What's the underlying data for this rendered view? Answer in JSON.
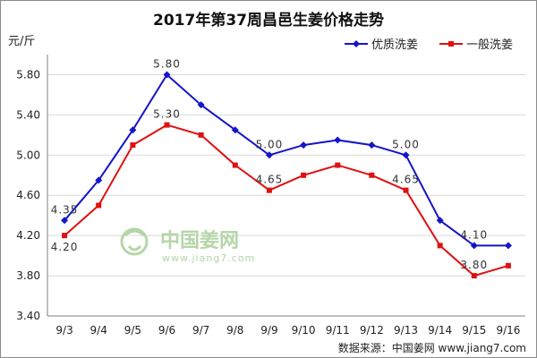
{
  "chart_data": {
    "type": "line",
    "title": "2017年第37周昌邑生姜价格走势",
    "ylabel": "元/斤",
    "xlabel": "",
    "categories": [
      "9/3",
      "9/4",
      "9/5",
      "9/6",
      "9/7",
      "9/8",
      "9/9",
      "9/10",
      "9/11",
      "9/12",
      "9/13",
      "9/14",
      "9/15",
      "9/16"
    ],
    "ylim": [
      3.4,
      6.0
    ],
    "yticks": [
      "3.40",
      "3.80",
      "4.20",
      "4.60",
      "5.00",
      "5.40",
      "5.80"
    ],
    "grid": true,
    "legend_position": "top-right",
    "series": [
      {
        "name": "优质洗姜",
        "color": "#1414c8",
        "marker": "diamond",
        "values": [
          4.35,
          4.75,
          5.25,
          5.8,
          5.5,
          5.25,
          5.0,
          5.1,
          5.15,
          5.1,
          5.0,
          4.35,
          4.1,
          4.1
        ]
      },
      {
        "name": "一般洗姜",
        "color": "#e01010",
        "marker": "square",
        "values": [
          4.2,
          4.5,
          5.1,
          5.3,
          5.2,
          4.9,
          4.65,
          4.8,
          4.9,
          4.8,
          4.65,
          4.1,
          3.8,
          3.9
        ]
      }
    ],
    "data_labels": [
      {
        "series": 0,
        "index": 0,
        "text": "4.35",
        "pos": "above"
      },
      {
        "series": 1,
        "index": 0,
        "text": "4.20",
        "pos": "below"
      },
      {
        "series": 0,
        "index": 3,
        "text": "5.80",
        "pos": "above"
      },
      {
        "series": 1,
        "index": 3,
        "text": "5.30",
        "pos": "above"
      },
      {
        "series": 0,
        "index": 6,
        "text": "5.00",
        "pos": "above"
      },
      {
        "series": 1,
        "index": 6,
        "text": "4.65",
        "pos": "above"
      },
      {
        "series": 0,
        "index": 10,
        "text": "5.00",
        "pos": "above"
      },
      {
        "series": 1,
        "index": 10,
        "text": "4.65",
        "pos": "above"
      },
      {
        "series": 0,
        "index": 12,
        "text": "4.10",
        "pos": "above"
      },
      {
        "series": 1,
        "index": 12,
        "text": "3.80",
        "pos": "above"
      }
    ]
  },
  "watermark": {
    "logo_text": "中国姜网",
    "url_text": "www.jiang7.com"
  },
  "source_text": "数据来源：中国姜网 www.jiang7.com"
}
